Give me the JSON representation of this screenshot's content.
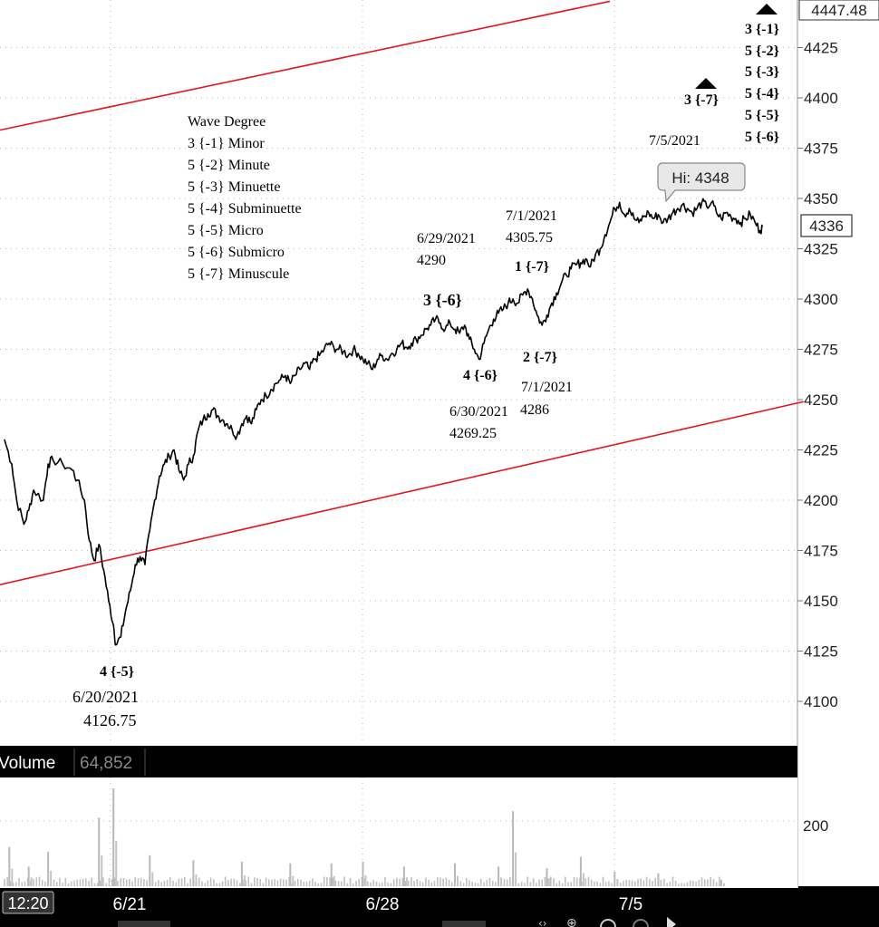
{
  "chart_data": {
    "type": "line",
    "x_tick_labels": [
      "6/21",
      "6/28",
      "7/5"
    ],
    "y_ticks": [
      4100,
      4125,
      4150,
      4175,
      4200,
      4225,
      4250,
      4275,
      4300,
      4325,
      4350,
      4375,
      4400,
      4425
    ],
    "ylim": [
      4085,
      4449
    ],
    "top_price_label": "4447.48",
    "last_price_label": "4336",
    "high_bubble": "Hi: 4348",
    "grid": true,
    "series": [
      {
        "values": [
          [
            0,
            4230
          ],
          [
            0.3,
            4218
          ],
          [
            0.5,
            4200
          ],
          [
            0.8,
            4188
          ],
          [
            1.0,
            4195
          ],
          [
            1.2,
            4205
          ],
          [
            1.6,
            4200
          ],
          [
            1.8,
            4218
          ],
          [
            2.0,
            4220
          ],
          [
            2.4,
            4218
          ],
          [
            2.8,
            4215
          ],
          [
            3.0,
            4210
          ],
          [
            3.3,
            4200
          ],
          [
            3.5,
            4180
          ],
          [
            3.7,
            4170
          ],
          [
            3.9,
            4178
          ],
          [
            4.1,
            4165
          ],
          [
            4.3,
            4150
          ],
          [
            4.5,
            4138
          ],
          [
            4.6,
            4128
          ],
          [
            4.8,
            4132
          ],
          [
            5.0,
            4145
          ],
          [
            5.2,
            4155
          ],
          [
            5.4,
            4168
          ],
          [
            5.6,
            4172
          ],
          [
            5.8,
            4168
          ],
          [
            6.0,
            4185
          ],
          [
            6.2,
            4200
          ],
          [
            6.4,
            4212
          ],
          [
            6.6,
            4218
          ],
          [
            6.8,
            4222
          ],
          [
            7.0,
            4225
          ],
          [
            7.2,
            4215
          ],
          [
            7.4,
            4210
          ],
          [
            7.6,
            4218
          ],
          [
            7.8,
            4222
          ],
          [
            8.0,
            4235
          ],
          [
            8.2,
            4240
          ],
          [
            8.4,
            4243
          ],
          [
            8.6,
            4245
          ],
          [
            8.8,
            4242
          ],
          [
            9.0,
            4240
          ],
          [
            9.2,
            4238
          ],
          [
            9.4,
            4235
          ],
          [
            9.6,
            4232
          ],
          [
            9.8,
            4238
          ],
          [
            10.0,
            4242
          ],
          [
            10.2,
            4238
          ],
          [
            10.4,
            4245
          ],
          [
            10.6,
            4250
          ],
          [
            10.8,
            4252
          ],
          [
            11.0,
            4255
          ],
          [
            11.2,
            4258
          ],
          [
            11.4,
            4260
          ],
          [
            11.6,
            4262
          ],
          [
            11.8,
            4258
          ],
          [
            12.0,
            4262
          ],
          [
            12.2,
            4265
          ],
          [
            12.4,
            4268
          ],
          [
            12.6,
            4265
          ],
          [
            12.8,
            4270
          ],
          [
            13.0,
            4272
          ],
          [
            13.2,
            4275
          ],
          [
            13.4,
            4278
          ],
          [
            13.6,
            4276
          ],
          [
            13.8,
            4275
          ],
          [
            14.0,
            4274
          ],
          [
            14.2,
            4272
          ],
          [
            14.4,
            4275
          ],
          [
            14.6,
            4273
          ],
          [
            14.8,
            4270
          ],
          [
            15.0,
            4268
          ],
          [
            15.2,
            4265
          ],
          [
            15.4,
            4270
          ],
          [
            15.6,
            4272
          ],
          [
            15.8,
            4270
          ],
          [
            16.0,
            4273
          ],
          [
            16.2,
            4275
          ],
          [
            16.4,
            4278
          ],
          [
            16.6,
            4276
          ],
          [
            16.8,
            4278
          ],
          [
            17.0,
            4280
          ],
          [
            17.2,
            4282
          ],
          [
            17.4,
            4285
          ],
          [
            17.6,
            4287
          ],
          [
            17.8,
            4290
          ],
          [
            18.0,
            4288
          ],
          [
            18.2,
            4285
          ],
          [
            18.4,
            4288
          ],
          [
            18.6,
            4285
          ],
          [
            18.8,
            4283
          ],
          [
            19.0,
            4287
          ],
          [
            19.2,
            4280
          ],
          [
            19.4,
            4275
          ],
          [
            19.6,
            4270
          ],
          [
            19.8,
            4278
          ],
          [
            20.0,
            4285
          ],
          [
            20.2,
            4290
          ],
          [
            20.4,
            4293
          ],
          [
            20.6,
            4295
          ],
          [
            20.8,
            4298
          ],
          [
            21.0,
            4300
          ],
          [
            21.2,
            4298
          ],
          [
            21.4,
            4302
          ],
          [
            21.6,
            4305
          ],
          [
            21.8,
            4300
          ],
          [
            22.0,
            4292
          ],
          [
            22.2,
            4287
          ],
          [
            22.4,
            4292
          ],
          [
            22.6,
            4298
          ],
          [
            22.8,
            4303
          ],
          [
            23.0,
            4308
          ],
          [
            23.2,
            4312
          ],
          [
            23.4,
            4315
          ],
          [
            23.6,
            4317
          ],
          [
            23.8,
            4318
          ],
          [
            24.0,
            4320
          ],
          [
            24.2,
            4316
          ],
          [
            24.4,
            4322
          ],
          [
            24.6,
            4325
          ],
          [
            24.8,
            4332
          ],
          [
            25.0,
            4338
          ],
          [
            25.2,
            4345
          ],
          [
            25.4,
            4348
          ],
          [
            25.6,
            4342
          ],
          [
            25.8,
            4345
          ],
          [
            26.0,
            4340
          ],
          [
            26.2,
            4338
          ],
          [
            26.4,
            4341
          ],
          [
            26.6,
            4343
          ],
          [
            26.8,
            4340
          ],
          [
            27.0,
            4342
          ],
          [
            27.2,
            4338
          ],
          [
            27.4,
            4340
          ],
          [
            27.6,
            4343
          ],
          [
            27.8,
            4345
          ],
          [
            28.0,
            4347
          ],
          [
            28.2,
            4345
          ],
          [
            28.4,
            4343
          ],
          [
            28.6,
            4345
          ],
          [
            28.8,
            4348
          ],
          [
            29.0,
            4346
          ],
          [
            29.2,
            4348
          ],
          [
            29.4,
            4343
          ],
          [
            29.6,
            4340
          ],
          [
            29.8,
            4343
          ],
          [
            30.0,
            4341
          ],
          [
            30.2,
            4340
          ],
          [
            30.4,
            4338
          ],
          [
            30.6,
            4340
          ],
          [
            30.8,
            4342
          ],
          [
            31.0,
            4338
          ],
          [
            31.2,
            4334
          ],
          [
            31.3,
            4336
          ]
        ]
      }
    ],
    "channel_upper": [
      [
        0,
        4384
      ],
      [
        25,
        4448
      ]
    ],
    "channel_lower": [
      [
        0,
        4158
      ],
      [
        33,
        4249
      ]
    ],
    "wave_legend": {
      "title": "Wave Degree",
      "items": [
        "3 {-1} Minor",
        "5 {-2} Minute",
        "5 {-3} Minuette",
        "5 {-4} Subminuette",
        "5 {-5} Micro",
        "5 {-6} Submicro",
        "5 {-7} Minuscule"
      ]
    },
    "right_wave_labels": [
      "3 {-1}",
      "5 {-2}",
      "5 {-3}",
      "5 {-4}",
      "5 {-5}",
      "5 {-6}"
    ],
    "annotations": {
      "wave_3_minus7": "3 {-7}",
      "date_7_5": "7/5/2021",
      "date_7_1_hi": "7/1/2021",
      "price_7_1_hi": "4305.75",
      "wave_1_minus7": "1 {-7}",
      "date_6_29": "6/29/2021",
      "price_6_29": "4290",
      "wave_3_minus6": "3 {-6}",
      "wave_4_minus6": "4 {-6}",
      "wave_2_minus7": "2 {-7}",
      "date_7_1_lo": "7/1/2021",
      "price_7_1_lo": "4286",
      "date_6_30": "6/30/2021",
      "price_6_30": "4269.25",
      "wave_4_minus5": "4 {-5}",
      "date_6_20": "6/20/2021",
      "price_6_20": "4126.75"
    },
    "volume": {
      "label": "Volume",
      "value": "64,852",
      "y_tick": "200",
      "y_tick_partial": "0",
      "ylim": [
        0,
        300
      ],
      "spikes": [
        [
          0.2,
          120
        ],
        [
          1.0,
          60
        ],
        [
          1.8,
          105
        ],
        [
          3.9,
          210
        ],
        [
          4.5,
          310
        ],
        [
          6.0,
          95
        ],
        [
          7.8,
          80
        ],
        [
          9.8,
          75
        ],
        [
          11.8,
          70
        ],
        [
          13.5,
          70
        ],
        [
          14.8,
          75
        ],
        [
          16.5,
          60
        ],
        [
          18.6,
          70
        ],
        [
          20.4,
          60
        ],
        [
          21.0,
          230
        ],
        [
          22.4,
          55
        ],
        [
          23.8,
          90
        ],
        [
          25.2,
          45
        ],
        [
          27.0,
          40
        ],
        [
          29.6,
          20
        ]
      ]
    },
    "time_label": "12:20"
  },
  "colors": {
    "channel": "#e8141c",
    "price": "#000000",
    "volume": "#c0c0c0",
    "panel_bg": "#000000",
    "axis_text": "#222222"
  }
}
